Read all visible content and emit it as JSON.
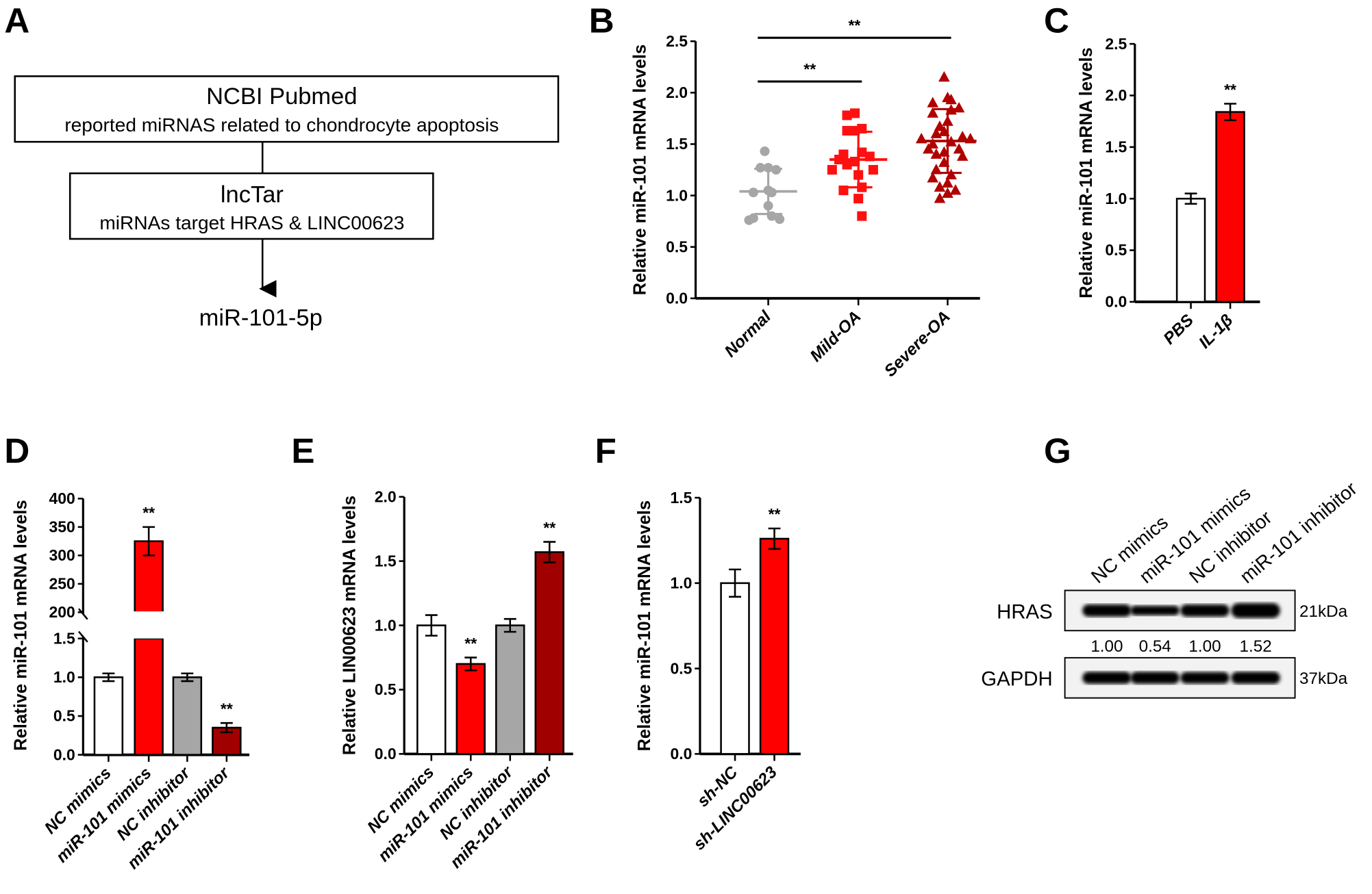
{
  "panel_letters": [
    "A",
    "B",
    "C",
    "D",
    "E",
    "F",
    "G"
  ],
  "flowchart": {
    "box1_title": "NCBI Pubmed",
    "box1_sub": "reported miRNAS related to chondrocyte apoptosis",
    "box2_title": "lncTar",
    "box2_sub": "miRNAs target HRAS & LINC00623",
    "result": "miR-101-5p"
  },
  "colors": {
    "white": "#ffffff",
    "red": "#ff0000",
    "grey": "#a6a6a6",
    "darkred": "#a00000",
    "normal": "#a6a6a6",
    "mild": "#ff1010",
    "severe": "#b00000"
  },
  "chart_data": [
    {
      "id": "B",
      "type": "scatter",
      "ylabel": "Relative miR-101 mRNA levels",
      "ylim": [
        0,
        2.5
      ],
      "yticks": [
        "0.0",
        "0.5",
        "1.0",
        "1.5",
        "2.0",
        "2.5"
      ],
      "categories": [
        "Normal",
        "Mild-OA",
        "Severe-OA"
      ],
      "markers": [
        "circle",
        "square",
        "triangle"
      ],
      "series": [
        {
          "name": "Normal",
          "values": [
            1.43,
            1.27,
            1.27,
            1.25,
            1.05,
            1.03,
            1.03,
            0.9,
            0.8,
            0.78,
            0.77,
            0.76
          ],
          "mean": 1.04,
          "sd": 0.22
        },
        {
          "name": "Mild-OA",
          "values": [
            1.8,
            1.78,
            1.65,
            1.63,
            1.63,
            1.42,
            1.4,
            1.38,
            1.35,
            1.33,
            1.3,
            1.25,
            1.25,
            1.2,
            1.08,
            1.05,
            0.97,
            0.8
          ],
          "mean": 1.35,
          "sd": 0.27
        },
        {
          "name": "Severe-OA",
          "values": [
            2.15,
            1.95,
            1.93,
            1.9,
            1.85,
            1.83,
            1.8,
            1.72,
            1.67,
            1.62,
            1.6,
            1.57,
            1.55,
            1.55,
            1.52,
            1.5,
            1.45,
            1.45,
            1.42,
            1.4,
            1.38,
            1.32,
            1.25,
            1.2,
            1.17,
            1.12,
            1.08,
            1.05,
            1.02,
            0.97
          ],
          "mean": 1.53,
          "sd": 0.31
        }
      ],
      "significance": [
        {
          "from": "Normal",
          "to": "Mild-OA",
          "label": "**"
        },
        {
          "from": "Normal",
          "to": "Severe-OA",
          "label": "**"
        }
      ]
    },
    {
      "id": "C",
      "type": "bar",
      "ylabel": "Relative miR-101 mRNA levels",
      "ylim": [
        0,
        2.5
      ],
      "yticks": [
        "0.0",
        "0.5",
        "1.0",
        "1.5",
        "2.0",
        "2.5"
      ],
      "categories": [
        "PBS",
        "IL-1β"
      ],
      "values": [
        1.0,
        1.84
      ],
      "errors": [
        0.05,
        0.08
      ],
      "fills": [
        "white",
        "red"
      ],
      "sig": [
        "",
        "**"
      ]
    },
    {
      "id": "D",
      "type": "bar",
      "ylabel": "Relative miR-101 mRNA levels",
      "axis_break": [
        1.5,
        200
      ],
      "yticks_lower": [
        "0.0",
        "0.5",
        "1.0",
        "1.5"
      ],
      "yticks_upper": [
        "200",
        "250",
        "300",
        "350",
        "400"
      ],
      "categories": [
        "NC mimics",
        "miR-101 mimics",
        "NC inhibitor",
        "miR-101 inhibitor"
      ],
      "values": [
        1.0,
        325,
        1.0,
        0.35
      ],
      "errors": [
        0.05,
        25,
        0.05,
        0.06
      ],
      "fills": [
        "white",
        "red",
        "grey",
        "darkred"
      ],
      "sig": [
        "",
        "**",
        "",
        "**"
      ]
    },
    {
      "id": "E",
      "type": "bar",
      "ylabel": "Relative LIN00623 mRNA levels",
      "ylim": [
        0,
        2.0
      ],
      "yticks": [
        "0.0",
        "0.5",
        "1.0",
        "1.5",
        "2.0"
      ],
      "categories": [
        "NC mimics",
        "miR-101 mimics",
        "NC inhibitor",
        "miR-101 inhibitor"
      ],
      "values": [
        1.0,
        0.7,
        1.0,
        1.57
      ],
      "errors": [
        0.08,
        0.05,
        0.05,
        0.08
      ],
      "fills": [
        "white",
        "red",
        "grey",
        "darkred"
      ],
      "sig": [
        "",
        "**",
        "",
        "**"
      ]
    },
    {
      "id": "F",
      "type": "bar",
      "ylabel": "Relative miR-101 mRNA levels",
      "ylim": [
        0,
        1.5
      ],
      "yticks": [
        "0.0",
        "0.5",
        "1.0",
        "1.5"
      ],
      "categories": [
        "sh-NC",
        "sh-LINC00623"
      ],
      "values": [
        1.0,
        1.26
      ],
      "errors": [
        0.08,
        0.06
      ],
      "fills": [
        "white",
        "red"
      ],
      "sig": [
        "",
        "**"
      ]
    }
  ],
  "western_blot": {
    "lanes": [
      "NC mimics",
      "miR-101 mimics",
      "NC inhibitor",
      "miR-101 inhibitor"
    ],
    "rows": [
      {
        "protein": "HRAS",
        "size": "21kDa",
        "intensities": [
          1.0,
          0.54,
          1.0,
          1.52
        ]
      },
      {
        "protein": "GAPDH",
        "size": "37kDa",
        "intensities": [
          1.0,
          1.0,
          0.9,
          1.0
        ]
      }
    ],
    "quantification": [
      "1.00",
      "0.54",
      "1.00",
      "1.52"
    ]
  }
}
